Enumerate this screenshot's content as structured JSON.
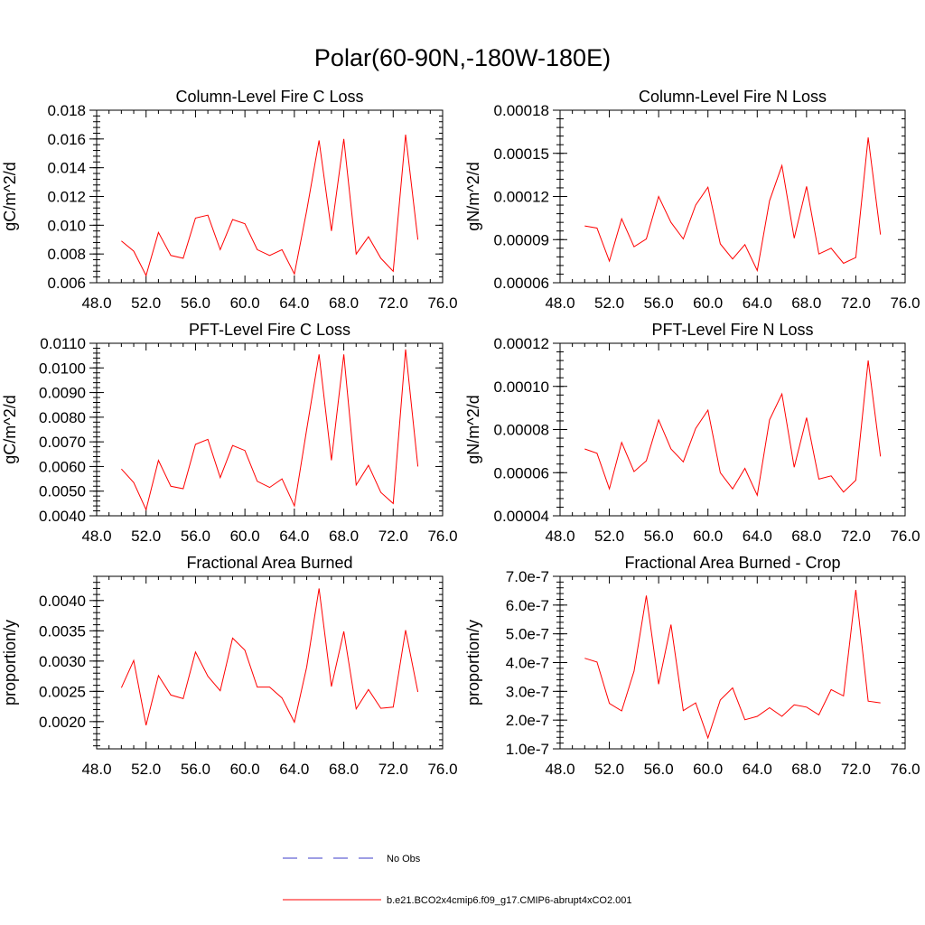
{
  "suptitle": "Polar(60-90N,-180W-180E)",
  "colors": {
    "model_line": "#ff0000",
    "obs_line": "#3c3cc8",
    "axis": "#000000"
  },
  "legend": {
    "obs_label": "No Obs",
    "model_label": "b.e21.BCO2x4cmip6.f09_g17.CMIP6-abrupt4xCO2.001"
  },
  "chart_data": [
    {
      "type": "line",
      "title": "Column-Level Fire C Loss",
      "ylabel": "gC/m^2/d",
      "xlim": [
        48,
        76
      ],
      "ylim": [
        0.006,
        0.018
      ],
      "xticks": [
        "48.0",
        "52.0",
        "56.0",
        "60.0",
        "64.0",
        "68.0",
        "72.0",
        "76.0"
      ],
      "yticks": [
        {
          "v": 0.006,
          "label": "0.006"
        },
        {
          "v": 0.008,
          "label": "0.008"
        },
        {
          "v": 0.01,
          "label": "0.010"
        },
        {
          "v": 0.012,
          "label": "0.012"
        },
        {
          "v": 0.014,
          "label": "0.014"
        },
        {
          "v": 0.016,
          "label": "0.016"
        },
        {
          "v": 0.018,
          "label": "0.018"
        }
      ],
      "x": [
        50,
        51,
        52,
        53,
        54,
        55,
        56,
        57,
        58,
        59,
        60,
        61,
        62,
        63,
        64,
        65,
        66,
        67,
        68,
        69,
        70,
        71,
        72,
        73,
        74
      ],
      "series": [
        {
          "name": "b.e21.BCO2x4cmip6.f09_g17.CMIP6-abrupt4xCO2.001",
          "values": [
            0.0089,
            0.0082,
            0.0065,
            0.0095,
            0.0079,
            0.0077,
            0.0105,
            0.0107,
            0.0083,
            0.0104,
            0.0101,
            0.0083,
            0.0079,
            0.0083,
            0.0066,
            0.011,
            0.0159,
            0.0096,
            0.016,
            0.008,
            0.0092,
            0.0077,
            0.0068,
            0.0163,
            0.009
          ]
        }
      ]
    },
    {
      "type": "line",
      "title": "Column-Level Fire N Loss",
      "ylabel": "gN/m^2/d",
      "xlim": [
        48,
        76
      ],
      "ylim": [
        6e-05,
        0.00018
      ],
      "xticks": [
        "48.0",
        "52.0",
        "56.0",
        "60.0",
        "64.0",
        "68.0",
        "72.0",
        "76.0"
      ],
      "yticks": [
        {
          "v": 6e-05,
          "label": "0.00006"
        },
        {
          "v": 9e-05,
          "label": "0.00009"
        },
        {
          "v": 0.00012,
          "label": "0.00012"
        },
        {
          "v": 0.00015,
          "label": "0.00015"
        },
        {
          "v": 0.00018,
          "label": "0.00018"
        }
      ],
      "x": [
        50,
        51,
        52,
        53,
        54,
        55,
        56,
        57,
        58,
        59,
        60,
        61,
        62,
        63,
        64,
        65,
        66,
        67,
        68,
        69,
        70,
        71,
        72,
        73,
        74
      ],
      "series": [
        {
          "name": "b.e21.BCO2x4cmip6.f09_g17.CMIP6-abrupt4xCO2.001",
          "values": [
            9.95e-05,
            9.8e-05,
            7.5e-05,
            0.0001045,
            8.5e-05,
            9.05e-05,
            0.00012,
            0.000102,
            9.05e-05,
            0.000114,
            0.0001265,
            8.7e-05,
            7.65e-05,
            8.65e-05,
            6.85e-05,
            0.000117,
            0.0001415,
            9.1e-05,
            0.000127,
            8e-05,
            8.4e-05,
            7.35e-05,
            7.75e-05,
            0.000161,
            9.35e-05
          ]
        }
      ]
    },
    {
      "type": "line",
      "title": "PFT-Level Fire C Loss",
      "ylabel": "gC/m^2/d",
      "xlim": [
        48,
        76
      ],
      "ylim": [
        0.004,
        0.011
      ],
      "xticks": [
        "48.0",
        "52.0",
        "56.0",
        "60.0",
        "64.0",
        "68.0",
        "72.0",
        "76.0"
      ],
      "yticks": [
        {
          "v": 0.004,
          "label": "0.0040"
        },
        {
          "v": 0.005,
          "label": "0.0050"
        },
        {
          "v": 0.006,
          "label": "0.0060"
        },
        {
          "v": 0.007,
          "label": "0.0070"
        },
        {
          "v": 0.008,
          "label": "0.0080"
        },
        {
          "v": 0.009,
          "label": "0.0090"
        },
        {
          "v": 0.01,
          "label": "0.0100"
        },
        {
          "v": 0.011,
          "label": "0.0110"
        }
      ],
      "x": [
        50,
        51,
        52,
        53,
        54,
        55,
        56,
        57,
        58,
        59,
        60,
        61,
        62,
        63,
        64,
        65,
        66,
        67,
        68,
        69,
        70,
        71,
        72,
        73,
        74
      ],
      "series": [
        {
          "name": "b.e21.BCO2x4cmip6.f09_g17.CMIP6-abrupt4xCO2.001",
          "values": [
            0.0059,
            0.00535,
            0.00425,
            0.00625,
            0.0052,
            0.0051,
            0.0069,
            0.0071,
            0.00555,
            0.00685,
            0.00665,
            0.0054,
            0.00515,
            0.0055,
            0.0044,
            0.0075,
            0.01055,
            0.00625,
            0.01055,
            0.00525,
            0.00605,
            0.00495,
            0.0045,
            0.01075,
            0.006
          ]
        }
      ]
    },
    {
      "type": "line",
      "title": "PFT-Level Fire N Loss",
      "ylabel": "gN/m^2/d",
      "xlim": [
        48,
        76
      ],
      "ylim": [
        4e-05,
        0.00012
      ],
      "xticks": [
        "48.0",
        "52.0",
        "56.0",
        "60.0",
        "64.0",
        "68.0",
        "72.0",
        "76.0"
      ],
      "yticks": [
        {
          "v": 4e-05,
          "label": "0.00004"
        },
        {
          "v": 6e-05,
          "label": "0.00006"
        },
        {
          "v": 8e-05,
          "label": "0.00008"
        },
        {
          "v": 0.0001,
          "label": "0.00010"
        },
        {
          "v": 0.00012,
          "label": "0.00012"
        }
      ],
      "x": [
        50,
        51,
        52,
        53,
        54,
        55,
        56,
        57,
        58,
        59,
        60,
        61,
        62,
        63,
        64,
        65,
        66,
        67,
        68,
        69,
        70,
        71,
        72,
        73,
        74
      ],
      "series": [
        {
          "name": "b.e21.BCO2x4cmip6.f09_g17.CMIP6-abrupt4xCO2.001",
          "values": [
            7.1e-05,
            6.9e-05,
            5.25e-05,
            7.4e-05,
            6.05e-05,
            6.55e-05,
            8.45e-05,
            7.1e-05,
            6.5e-05,
            8.05e-05,
            8.9e-05,
            6e-05,
            5.25e-05,
            6.2e-05,
            4.95e-05,
            8.45e-05,
            9.65e-05,
            6.25e-05,
            8.55e-05,
            5.7e-05,
            5.85e-05,
            5.1e-05,
            5.65e-05,
            0.000112,
            6.75e-05
          ]
        }
      ]
    },
    {
      "type": "line",
      "title": "Fractional Area Burned",
      "ylabel": "proportion/y",
      "xlim": [
        48,
        76
      ],
      "ylim": [
        0.00155,
        0.0044
      ],
      "xticks": [
        "48.0",
        "52.0",
        "56.0",
        "60.0",
        "64.0",
        "68.0",
        "72.0",
        "76.0"
      ],
      "yticks": [
        {
          "v": 0.002,
          "label": "0.0020"
        },
        {
          "v": 0.0025,
          "label": "0.0025"
        },
        {
          "v": 0.003,
          "label": "0.0030"
        },
        {
          "v": 0.0035,
          "label": "0.0035"
        },
        {
          "v": 0.004,
          "label": "0.0040"
        }
      ],
      "x": [
        50,
        51,
        52,
        53,
        54,
        55,
        56,
        57,
        58,
        59,
        60,
        61,
        62,
        63,
        64,
        65,
        66,
        67,
        68,
        69,
        70,
        71,
        72,
        73,
        74
      ],
      "series": [
        {
          "name": "b.e21.BCO2x4cmip6.f09_g17.CMIP6-abrupt4xCO2.001",
          "values": [
            0.00256,
            0.00301,
            0.00194,
            0.00276,
            0.00244,
            0.00238,
            0.00315,
            0.00275,
            0.00251,
            0.00338,
            0.00318,
            0.00257,
            0.00257,
            0.00239,
            0.00199,
            0.0029,
            0.0042,
            0.00258,
            0.00349,
            0.00221,
            0.00253,
            0.00222,
            0.00224,
            0.00351,
            0.00249
          ]
        }
      ]
    },
    {
      "type": "line",
      "title": "Fractional Area Burned - Crop",
      "ylabel": "proportion/y",
      "xlim": [
        48,
        76
      ],
      "ylim": [
        1e-07,
        7e-07
      ],
      "xticks": [
        "48.0",
        "52.0",
        "56.0",
        "60.0",
        "64.0",
        "68.0",
        "72.0",
        "76.0"
      ],
      "yticks": [
        {
          "v": 1e-07,
          "label": "1.0e-7"
        },
        {
          "v": 2e-07,
          "label": "2.0e-7"
        },
        {
          "v": 3e-07,
          "label": "3.0e-7"
        },
        {
          "v": 4e-07,
          "label": "4.0e-7"
        },
        {
          "v": 5e-07,
          "label": "5.0e-7"
        },
        {
          "v": 6e-07,
          "label": "6.0e-7"
        },
        {
          "v": 7e-07,
          "label": "7.0e-7"
        }
      ],
      "x": [
        50,
        51,
        52,
        53,
        54,
        55,
        56,
        57,
        58,
        59,
        60,
        61,
        62,
        63,
        64,
        65,
        66,
        67,
        68,
        69,
        70,
        71,
        72,
        73,
        74
      ],
      "series": [
        {
          "name": "b.e21.BCO2x4cmip6.f09_g17.CMIP6-abrupt4xCO2.001",
          "values": [
            4.15e-07,
            4.02e-07,
            2.58e-07,
            2.32e-07,
            3.7e-07,
            6.33e-07,
            3.25e-07,
            5.32e-07,
            2.33e-07,
            2.6e-07,
            1.38e-07,
            2.7e-07,
            3.12e-07,
            2.01e-07,
            2.13e-07,
            2.43e-07,
            2.13e-07,
            2.53e-07,
            2.45e-07,
            2.18e-07,
            3.06e-07,
            2.84e-07,
            6.53e-07,
            2.66e-07,
            2.6e-07
          ]
        }
      ]
    }
  ]
}
